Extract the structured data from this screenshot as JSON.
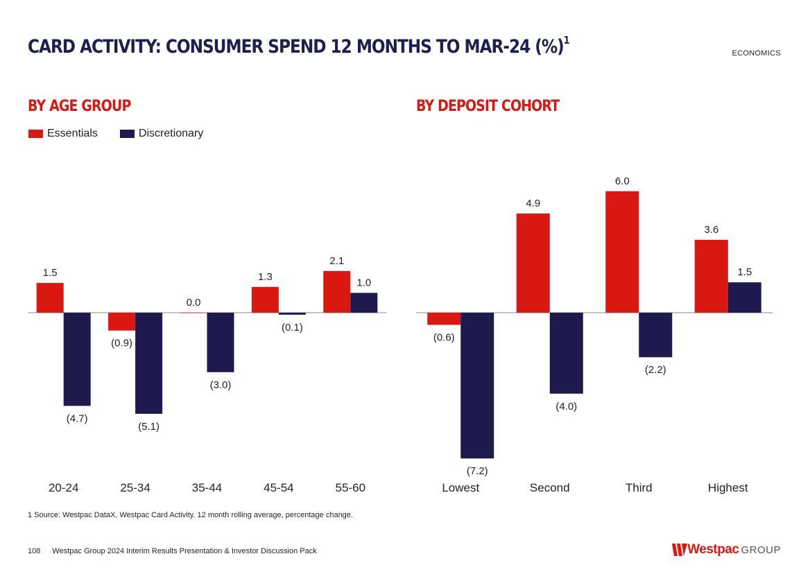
{
  "page": {
    "title": "CARD ACTIVITY: CONSUMER SPEND 12 MONTHS TO MAR-24 (%)",
    "title_superscript": "1",
    "section_label": "ECONOMICS",
    "footnote": "1 Source: Westpac DataX, Westpac Card Activity. 12 month rolling average, percentage change.",
    "page_number": "108",
    "footer_text": "Westpac Group 2024 Interim Results Presentation & Investor Discussion Pack",
    "logo_brand": "Westpac",
    "logo_group": "GROUP"
  },
  "colors": {
    "essentials": "#da1710",
    "discretionary": "#1f1a4d",
    "axis": "#888888",
    "heading": "#1e1e4f",
    "accent": "#da1710"
  },
  "legend": {
    "essentials": "Essentials",
    "discretionary": "Discretionary"
  },
  "chart_data": [
    {
      "type": "bar",
      "title": "BY AGE GROUP",
      "categories": [
        "20-24",
        "25-34",
        "35-44",
        "45-54",
        "55-60"
      ],
      "series": [
        {
          "name": "Essentials",
          "values": [
            1.5,
            -0.9,
            0.0,
            1.3,
            2.1
          ],
          "labels": [
            "1.5",
            "(0.9)",
            "0.0",
            "1.3",
            "2.1"
          ]
        },
        {
          "name": "Discretionary",
          "values": [
            -4.7,
            -5.1,
            -3.0,
            -0.1,
            1.0
          ],
          "labels": [
            "(4.7)",
            "(5.1)",
            "(3.0)",
            "(0.1)",
            "1.0"
          ]
        }
      ],
      "xlabel": "",
      "ylabel": "",
      "legend": "top-left"
    },
    {
      "type": "bar",
      "title": "BY DEPOSIT COHORT",
      "categories": [
        "Lowest",
        "Second",
        "Third",
        "Highest"
      ],
      "series": [
        {
          "name": "Essentials",
          "values": [
            -0.6,
            4.9,
            6.0,
            3.6
          ],
          "labels": [
            "(0.6)",
            "4.9",
            "6.0",
            "3.6"
          ]
        },
        {
          "name": "Discretionary",
          "values": [
            -7.2,
            -4.0,
            -2.2,
            1.5
          ],
          "labels": [
            "(7.2)",
            "(4.0)",
            "(2.2)",
            "1.5"
          ]
        }
      ],
      "xlabel": "",
      "ylabel": "",
      "legend": "none"
    }
  ]
}
